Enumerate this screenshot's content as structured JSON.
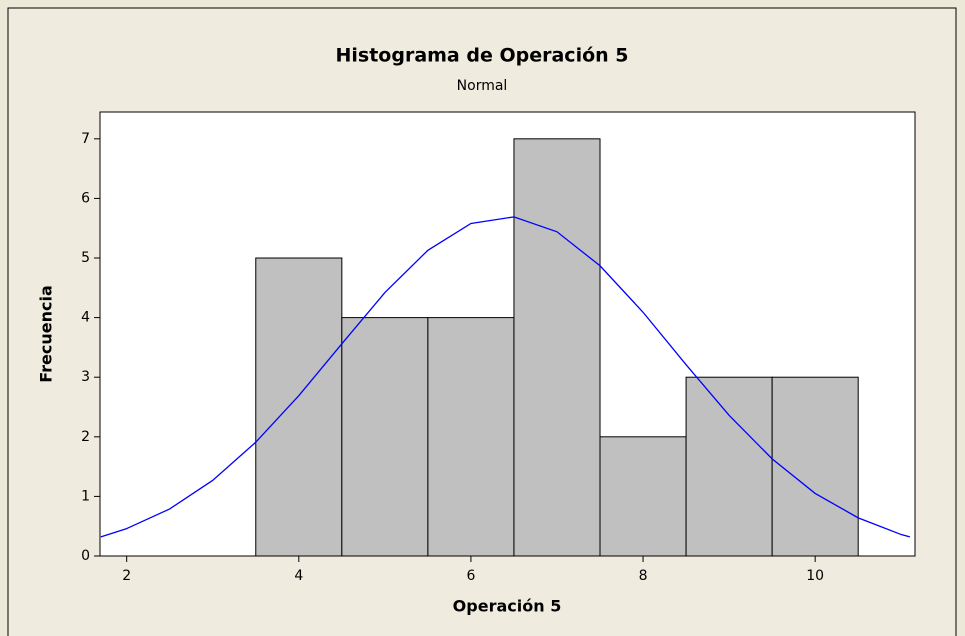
{
  "chart_data": {
    "type": "histogram",
    "title": "Histograma de Operación 5",
    "subtitle": "Normal",
    "x_label": "Operación 5",
    "y_label": "Frecuencia",
    "bins": [
      3.5,
      4.5,
      5.5,
      6.5,
      7.5,
      8.5,
      9.5,
      10.5
    ],
    "values": [
      5,
      4,
      4,
      7,
      2,
      3,
      3
    ],
    "color": "#c0c0c0",
    "curve": {
      "color": "#0000ff",
      "x": [
        1.7,
        2.0,
        2.5,
        3.0,
        3.5,
        4.0,
        4.5,
        5.0,
        5.5,
        6.0,
        6.5,
        7.0,
        7.5,
        8.0,
        8.5,
        9.0,
        9.5,
        10.0,
        10.5,
        11.0,
        11.1
      ],
      "values": [
        0.32,
        0.46,
        0.79,
        1.27,
        1.91,
        2.69,
        3.56,
        4.42,
        5.13,
        5.58,
        5.69,
        5.44,
        4.87,
        4.09,
        3.21,
        2.36,
        1.63,
        1.05,
        0.64,
        0.36,
        0.32
      ]
    },
    "xlim": [
      1.69,
      11.16
    ],
    "xticks": [
      2,
      4,
      6,
      8,
      10
    ],
    "ylim": [
      0,
      7.45
    ],
    "yticks": [
      0,
      1,
      2,
      3,
      4,
      5,
      6,
      7
    ]
  }
}
